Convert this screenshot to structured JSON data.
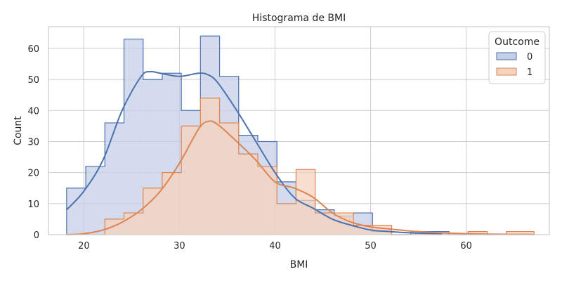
{
  "chart_data": {
    "type": "histogram",
    "title": "Histograma de BMI",
    "xlabel": "BMI",
    "ylabel": "Count",
    "xlim": [
      16.3,
      68.7
    ],
    "ylim": [
      0,
      67
    ],
    "xticks": [
      20,
      30,
      40,
      50,
      60
    ],
    "yticks": [
      0,
      10,
      20,
      30,
      40,
      50,
      60
    ],
    "grid": true,
    "legend": {
      "title": "Outcome",
      "placement": "top-right"
    },
    "bin_edges": [
      18.2,
      20.2,
      22.2,
      24.2,
      26.2,
      28.2,
      30.2,
      32.2,
      34.2,
      36.2,
      38.2,
      40.2,
      42.2,
      44.2,
      46.2,
      48.2,
      50.2,
      52.2,
      54.2,
      56.2,
      58.2,
      60.2,
      62.2,
      64.2,
      66.2,
      67.1
    ],
    "series": [
      {
        "name": "0",
        "color": "#4c72b0",
        "fill": "#c5cfe6",
        "counts": [
          15,
          22,
          36,
          63,
          50,
          52,
          40,
          64,
          51,
          32,
          30,
          17,
          11,
          8,
          6,
          7,
          1,
          0,
          1,
          1,
          0,
          0,
          0,
          0,
          0
        ],
        "kde": [
          [
            18.2,
            8
          ],
          [
            20,
            14
          ],
          [
            22,
            24
          ],
          [
            24,
            40
          ],
          [
            26,
            51
          ],
          [
            27,
            52.5
          ],
          [
            28,
            52
          ],
          [
            30,
            51
          ],
          [
            32,
            52
          ],
          [
            33,
            51.5
          ],
          [
            34,
            49
          ],
          [
            36,
            40
          ],
          [
            38,
            30
          ],
          [
            40,
            20
          ],
          [
            42,
            12
          ],
          [
            44,
            8.5
          ],
          [
            46,
            5
          ],
          [
            48,
            3
          ],
          [
            50,
            1.5
          ],
          [
            52,
            1
          ],
          [
            54,
            0.6
          ],
          [
            56,
            0.4
          ],
          [
            57.5,
            0.3
          ]
        ]
      },
      {
        "name": "1",
        "color": "#dd8452",
        "fill": "#f5d3be",
        "counts": [
          0,
          0,
          5,
          7,
          15,
          20,
          35,
          44,
          36,
          26,
          22,
          10,
          21,
          7,
          7,
          3,
          3,
          0,
          0,
          0,
          0,
          1,
          0,
          1,
          1
        ],
        "kde": [
          [
            18.2,
            0
          ],
          [
            20,
            0.3
          ],
          [
            22,
            1.5
          ],
          [
            24,
            4
          ],
          [
            26,
            8
          ],
          [
            28,
            14
          ],
          [
            30,
            23
          ],
          [
            32,
            34
          ],
          [
            33,
            36.5
          ],
          [
            34,
            35.5
          ],
          [
            36,
            30
          ],
          [
            38,
            24
          ],
          [
            40,
            17
          ],
          [
            42,
            15
          ],
          [
            44,
            12
          ],
          [
            46,
            7
          ],
          [
            48,
            4
          ],
          [
            50,
            2.5
          ],
          [
            52,
            1.8
          ],
          [
            54,
            1.2
          ],
          [
            56,
            0.8
          ],
          [
            58,
            0.5
          ],
          [
            60,
            0.3
          ],
          [
            62,
            0.2
          ],
          [
            64,
            0.1
          ],
          [
            66,
            0.1
          ],
          [
            67.1,
            0.05
          ]
        ]
      }
    ]
  }
}
